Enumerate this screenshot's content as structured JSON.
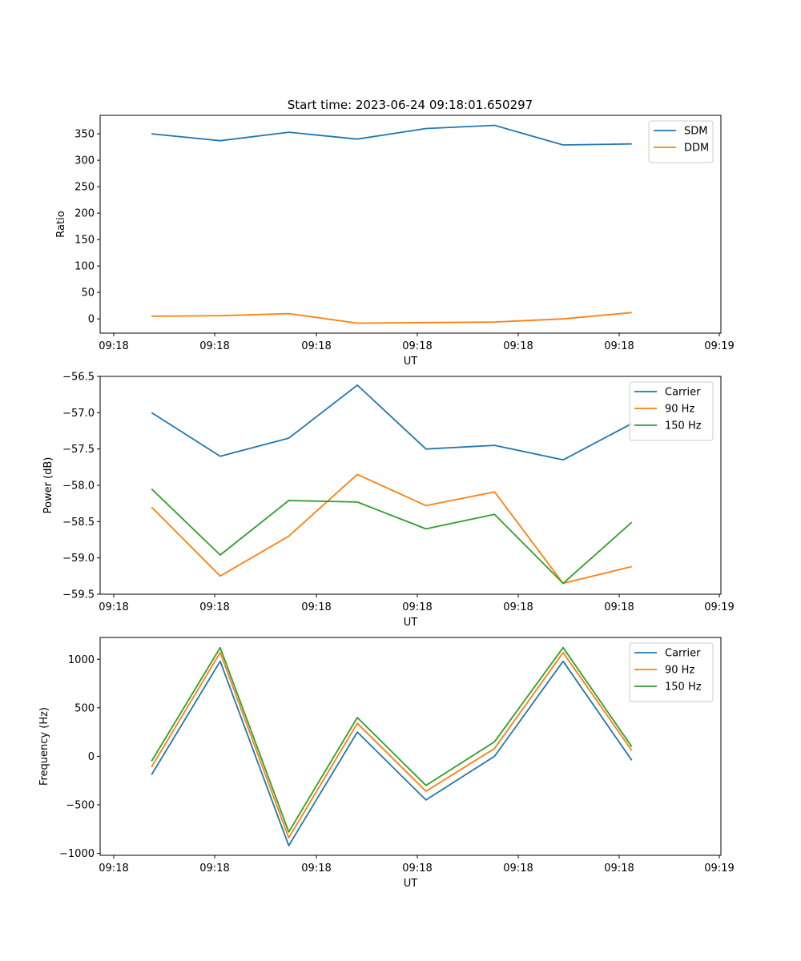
{
  "figure": {
    "title": "Start time: 2023-06-24 09:18:01.650297"
  },
  "chart_data": [
    {
      "type": "line",
      "title": "Start time: 2023-06-24 09:18:01.650297",
      "xlabel": "UT",
      "ylabel": "Ratio",
      "x_ticks": [
        "09:18",
        "09:18",
        "09:18",
        "09:18",
        "09:18",
        "09:18",
        "09:19"
      ],
      "x": [
        1,
        2,
        3,
        4,
        5,
        6,
        7,
        8
      ],
      "xlim": [
        0.25,
        9.3
      ],
      "ylim": [
        -27,
        385
      ],
      "y_ticks": [
        0,
        50,
        100,
        150,
        200,
        250,
        300,
        350
      ],
      "grid": false,
      "legend_position": "top-right",
      "series": [
        {
          "name": "SDM",
          "color": "#1f77b4",
          "values": [
            350,
            337,
            353,
            340,
            360,
            366,
            329,
            331
          ]
        },
        {
          "name": "DDM",
          "color": "#ff7f0e",
          "values": [
            5,
            6,
            10,
            -8,
            -7,
            -6,
            0,
            12
          ]
        }
      ]
    },
    {
      "type": "line",
      "title": "",
      "xlabel": "UT",
      "ylabel": "Power (dB)",
      "x_ticks": [
        "09:18",
        "09:18",
        "09:18",
        "09:18",
        "09:18",
        "09:18",
        "09:19"
      ],
      "x": [
        1,
        2,
        3,
        4,
        5,
        6,
        7,
        8
      ],
      "xlim": [
        0.25,
        9.3
      ],
      "ylim": [
        -59.5,
        -56.5
      ],
      "y_ticks": [
        -59.5,
        -59.0,
        -58.5,
        -58.0,
        -57.5,
        -57.0,
        -56.5
      ],
      "grid": false,
      "legend_position": "top-right",
      "series": [
        {
          "name": "Carrier",
          "color": "#1f77b4",
          "values": [
            -57.0,
            -57.6,
            -57.35,
            -56.62,
            -57.5,
            -57.45,
            -57.65,
            -57.15
          ]
        },
        {
          "name": "90 Hz",
          "color": "#ff7f0e",
          "values": [
            -58.3,
            -59.25,
            -58.7,
            -57.85,
            -58.28,
            -58.09,
            -59.35,
            -59.12
          ]
        },
        {
          "name": "150 Hz",
          "color": "#2ca02c",
          "values": [
            -58.05,
            -58.96,
            -58.21,
            -58.23,
            -58.6,
            -58.4,
            -59.35,
            -58.51
          ]
        }
      ]
    },
    {
      "type": "line",
      "title": "",
      "xlabel": "UT",
      "ylabel": "Frequency (Hz)",
      "x_ticks": [
        "09:18",
        "09:18",
        "09:18",
        "09:18",
        "09:18",
        "09:18",
        "09:19"
      ],
      "x": [
        1,
        2,
        3,
        4,
        5,
        6,
        7,
        8
      ],
      "xlim": [
        0.25,
        9.3
      ],
      "ylim": [
        -1020,
        1225
      ],
      "y_ticks": [
        -1000,
        -500,
        0,
        500,
        1000
      ],
      "grid": false,
      "legend_position": "top-right",
      "series": [
        {
          "name": "Carrier",
          "color": "#1f77b4",
          "values": [
            -190,
            980,
            -920,
            250,
            -450,
            0,
            980,
            -40
          ]
        },
        {
          "name": "90 Hz",
          "color": "#ff7f0e",
          "values": [
            -110,
            1070,
            -840,
            340,
            -360,
            80,
            1070,
            60
          ]
        },
        {
          "name": "150 Hz",
          "color": "#2ca02c",
          "values": [
            -50,
            1120,
            -780,
            400,
            -300,
            150,
            1120,
            100
          ]
        }
      ]
    }
  ]
}
